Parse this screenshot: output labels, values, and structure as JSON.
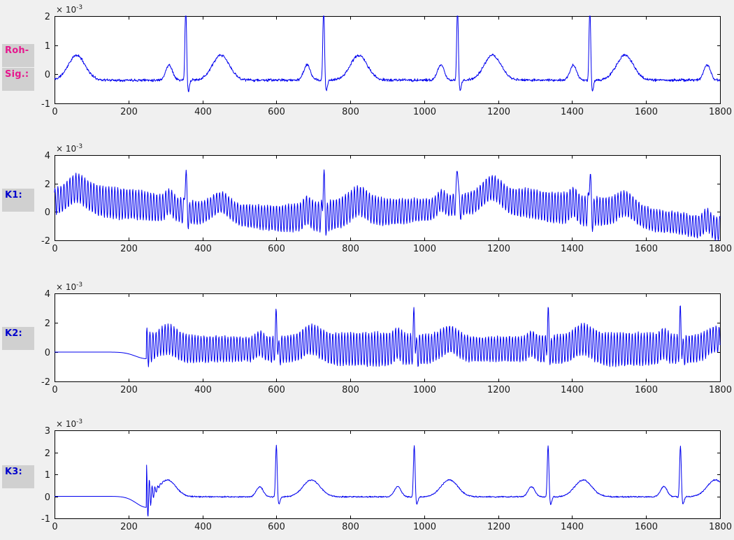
{
  "figure": {
    "background": "#f0f0f0",
    "plot_background": "#ffffff",
    "axis_color": "#000000",
    "trace_color": "#0000ee",
    "tick_label_color": "#1a1a1a",
    "label_box_color": "#d0d0d0",
    "y_scale_label": {
      "base": "× 10",
      "exp": "-3"
    }
  },
  "chart_data": {
    "type": "line",
    "grid": false,
    "legend": "none",
    "x_axis": {
      "min": 0,
      "max": 1800,
      "ticks": [
        0,
        200,
        400,
        600,
        800,
        1000,
        1200,
        1400,
        1600,
        1800
      ]
    },
    "y_unit_scale": "1e-3",
    "plots": [
      {
        "name": "roh-sig",
        "side_labels": [
          {
            "text": "Roh-",
            "color": "#e6188e"
          },
          {
            "text": "Sig.:",
            "color": "#e6188e"
          }
        ],
        "ylim": [
          -1,
          2
        ],
        "yticks": [
          -1,
          0,
          1,
          2
        ],
        "features": {
          "kind": "raw ECG",
          "baseline_y": -0.2,
          "qrs_peak_x": [
            355,
            728,
            1090,
            1448
          ],
          "r_peak_y_clipped_at": 2,
          "s_trough_y": -0.6,
          "p_wave_x": [
            310,
            685,
            1045,
            1405,
            1765
          ],
          "t_wave_x": [
            60,
            450,
            820,
            1185,
            1550
          ],
          "t_wave_peak_y": 0.65
        },
        "signal": {
          "seed": 11,
          "ecg": {
            "beats": [
              -35,
              355,
              728,
              1090,
              1448,
              1810
            ],
            "baseline": -0.2,
            "delay": 0,
            "scale": 1,
            "p": [
              0.52,
              45,
              9
            ],
            "q": [
              -0.12,
              4,
              2
            ],
            "r": [
              2.7,
              2.3
            ],
            "s": [
              -0.42,
              6,
              3.5
            ],
            "t": [
              0.85,
              95,
              23
            ]
          },
          "noise": 0.035
        }
      },
      {
        "name": "k1",
        "side_labels": [
          {
            "text": "K1:",
            "color": "#0000cc"
          }
        ],
        "ylim": [
          -2,
          4
        ],
        "yticks": [
          -2,
          0,
          2,
          4
        ],
        "features": {
          "kind": "ECG with mains interference and baseline wander",
          "qrs_peak_x": [
            355,
            728,
            1090,
            1448
          ],
          "r_peak_y_clipped_at": 4,
          "oscillation_amplitude": 0.95,
          "envelope_center_start": 1.0,
          "envelope_center_min_x": 600,
          "envelope_center_max_x": 1180,
          "envelope_center_end": -1.1
        },
        "signal": {
          "seed": 22,
          "ecg": {
            "beats": [
              -35,
              355,
              728,
              1090,
              1448,
              1810
            ],
            "baseline": -0.2,
            "delay": 0,
            "scale": 1,
            "p": [
              0.52,
              45,
              9
            ],
            "q": [
              -0.12,
              4,
              2
            ],
            "r": [
              3.0,
              2.3
            ],
            "s": [
              -0.42,
              6,
              3.5
            ],
            "t": [
              0.85,
              95,
              23
            ]
          },
          "drift": [
            [
              0,
              0.95
            ],
            [
              80,
              1.05
            ],
            [
              200,
              0.75
            ],
            [
              300,
              0.45
            ],
            [
              400,
              0.1
            ],
            [
              500,
              -0.05
            ],
            [
              600,
              -0.25
            ],
            [
              700,
              -0.15
            ],
            [
              800,
              0.1
            ],
            [
              900,
              0.2
            ],
            [
              1000,
              0.35
            ],
            [
              1100,
              0.75
            ],
            [
              1180,
              1.05
            ],
            [
              1260,
              0.85
            ],
            [
              1360,
              0.5
            ],
            [
              1460,
              0.25
            ],
            [
              1560,
              -0.1
            ],
            [
              1660,
              -0.5
            ],
            [
              1750,
              -0.85
            ],
            [
              1800,
              -1.0
            ]
          ],
          "mains": {
            "amp": 0.93,
            "period": 8.1,
            "mod": 0.18,
            "mod_period": 610,
            "phase": 0.7
          },
          "noise": 0.05
        }
      },
      {
        "name": "k2",
        "side_labels": [
          {
            "text": "K2:",
            "color": "#0000cc"
          }
        ],
        "ylim": [
          -2,
          4
        ],
        "yticks": [
          -2,
          0,
          2,
          4
        ],
        "features": {
          "kind": "highpass-filtered ECG, mains interference remains, filter warm-up flat until x=250",
          "flat_until_x": 180,
          "onset_x": 250,
          "qrs_peak_x": [
            600,
            973,
            1335,
            1695
          ],
          "qrs_peak_y": 2.9,
          "oscillation_center": 0.2,
          "oscillation_amplitude": 1.0
        },
        "signal": {
          "seed": 33,
          "gate_start": 249,
          "predip": [
            -0.45,
            249,
            30
          ],
          "offset": 0.36,
          "ecg": {
            "beats": [
              -35,
              355,
              728,
              1090,
              1448,
              1810
            ],
            "baseline": -0.2,
            "delay": 245,
            "scale": 0.8,
            "p": [
              0.52,
              45,
              9
            ],
            "q": [
              -0.12,
              4,
              2
            ],
            "r": [
              2.7,
              2.3
            ],
            "s": [
              -0.42,
              6,
              3.5
            ],
            "t": [
              0.85,
              95,
              23
            ]
          },
          "ring": {
            "start": 249,
            "amp": 0.6,
            "decay": 22,
            "period": 7.5
          },
          "mains": {
            "amp": 1.0,
            "period": 8.1,
            "mod": 0.15,
            "mod_period": 680,
            "phase": 2.1
          },
          "noise": 0.05
        }
      },
      {
        "name": "k3",
        "side_labels": [
          {
            "text": "K3:",
            "color": "#0000cc"
          }
        ],
        "ylim": [
          -1,
          3
        ],
        "yticks": [
          -1,
          0,
          1,
          2,
          3
        ],
        "features": {
          "kind": "fully filtered clean ECG, flat until x=180, startup ringing at x=250",
          "flat_until_x": 180,
          "onset_dip_y": -0.5,
          "onset_x": 250,
          "ring_peak_y": 1.4,
          "qrs_peak_x": [
            600,
            973,
            1335,
            1695
          ],
          "qrs_peak_y": 2.35,
          "t_wave_x": [
            305,
            695,
            1070,
            1435,
            1795
          ],
          "t_wave_peak_y": 0.75
        },
        "signal": {
          "seed": 44,
          "gate_start": 249,
          "predip": [
            -0.5,
            249,
            28
          ],
          "offset": 0.16,
          "ecg": {
            "beats": [
              -35,
              355,
              728,
              1090,
              1448,
              1810
            ],
            "baseline": -0.2,
            "delay": 245,
            "scale": 0.9,
            "p": [
              0.52,
              45,
              9
            ],
            "q": [
              -0.12,
              4,
              2
            ],
            "r": [
              2.7,
              2.3
            ],
            "s": [
              -0.42,
              6,
              3.5
            ],
            "t": [
              0.85,
              95,
              23
            ]
          },
          "ring": {
            "start": 249,
            "amp": 1.4,
            "decay": 11,
            "period": 7.5
          },
          "noise": 0.022
        }
      }
    ]
  }
}
